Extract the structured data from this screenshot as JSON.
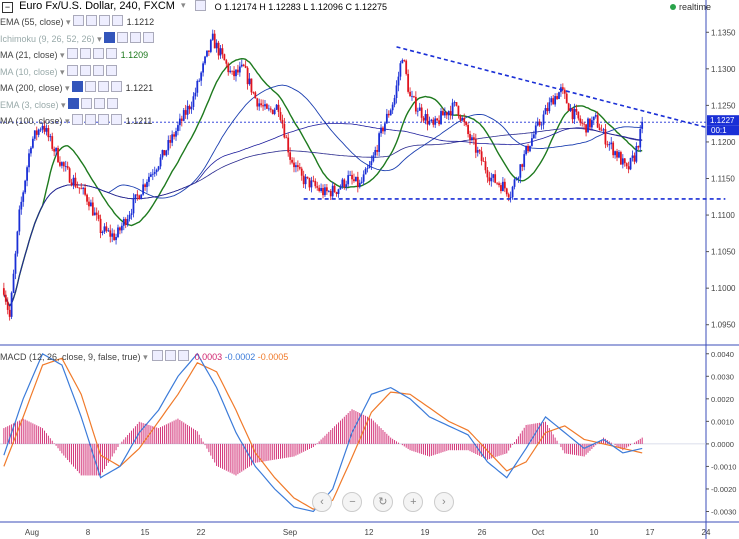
{
  "header": {
    "symbol": "Euro Fx/U.S. Dollar, 240, FXCM",
    "ohlc": "O 1.12174 H 1.12283 L 1.12096 C 1.12275",
    "realtime_label": "realtime"
  },
  "indicators": [
    {
      "name": "EMA (55, close)",
      "value": "1.1212",
      "color": "#1c3fb0"
    },
    {
      "name": "Ichimoku (9, 26, 52, 26)",
      "value": "",
      "color": "#7f9bd4"
    },
    {
      "name": "MA (21, close)",
      "value": "1.1209",
      "color": "#1e7a1e"
    },
    {
      "name": "MA (10, close)",
      "value": "",
      "color": "#999999"
    },
    {
      "name": "MA (200, close)",
      "value": "1.1221",
      "color": "#2a2a8e"
    },
    {
      "name": "EMA (3, close)",
      "value": "",
      "color": "#999999"
    },
    {
      "name": "MA (100, close)",
      "value": "1.1211",
      "color": "#1c1c9c"
    }
  ],
  "macd_legend": {
    "name": "MACD (12, 26, close, 9, false, true)",
    "hist": "0.0003",
    "macd": "-0.0002",
    "signal": "-0.0005"
  },
  "price_axis": {
    "ticks": [
      "1.1350",
      "1.1300",
      "1.1250",
      "1.1200",
      "1.1150",
      "1.1100",
      "1.1050",
      "1.1000",
      "1.0950"
    ],
    "current_price": "1.1227",
    "countdown": "00:1"
  },
  "macd_axis": {
    "ticks": [
      "0.0040",
      "0.0030",
      "0.0020",
      "0.0010",
      "0.0000",
      "-0.0010",
      "-0.0020",
      "-0.0030"
    ]
  },
  "time_axis": {
    "ticks": [
      "Aug",
      "8",
      "15",
      "22",
      "Sep",
      "12",
      "19",
      "26",
      "Oct",
      "10",
      "17",
      "24"
    ]
  },
  "colors": {
    "up": "#1a2fd6",
    "down": "#e0141e",
    "axis": "#3b4eb8",
    "macd_line": "#3b7bd9",
    "signal_line": "#f07a2a",
    "hist": "#d0246e"
  },
  "chart_data": [
    {
      "type": "candlestick",
      "title": "Euro Fx/U.S. Dollar, 240, FXCM",
      "ylim": [
        1.0925,
        1.1375
      ],
      "x_range": [
        "Aug",
        "24"
      ],
      "anchor_points": [
        [
          0,
          1.1
        ],
        [
          3,
          1.096
        ],
        [
          8,
          1.11
        ],
        [
          14,
          1.12
        ],
        [
          20,
          1.1225
        ],
        [
          24,
          1.12
        ],
        [
          28,
          1.118
        ],
        [
          32,
          1.116
        ],
        [
          38,
          1.114
        ],
        [
          44,
          1.112
        ],
        [
          50,
          1.108
        ],
        [
          58,
          1.107
        ],
        [
          66,
          1.111
        ],
        [
          74,
          1.115
        ],
        [
          82,
          1.118
        ],
        [
          90,
          1.122
        ],
        [
          98,
          1.126
        ],
        [
          104,
          1.131
        ],
        [
          108,
          1.134
        ],
        [
          112,
          1.132
        ],
        [
          118,
          1.129
        ],
        [
          124,
          1.13
        ],
        [
          130,
          1.126
        ],
        [
          136,
          1.124
        ],
        [
          142,
          1.125
        ],
        [
          148,
          1.118
        ],
        [
          154,
          1.115
        ],
        [
          160,
          1.114
        ],
        [
          166,
          1.113
        ],
        [
          172,
          1.1135
        ],
        [
          178,
          1.115
        ],
        [
          184,
          1.114
        ],
        [
          190,
          1.117
        ],
        [
          196,
          1.122
        ],
        [
          202,
          1.126
        ],
        [
          206,
          1.132
        ],
        [
          210,
          1.126
        ],
        [
          216,
          1.124
        ],
        [
          222,
          1.122
        ],
        [
          228,
          1.124
        ],
        [
          234,
          1.125
        ],
        [
          240,
          1.121
        ],
        [
          246,
          1.118
        ],
        [
          252,
          1.115
        ],
        [
          258,
          1.114
        ],
        [
          262,
          1.113
        ],
        [
          266,
          1.116
        ],
        [
          272,
          1.12
        ],
        [
          278,
          1.123
        ],
        [
          284,
          1.126
        ],
        [
          288,
          1.127
        ],
        [
          294,
          1.124
        ],
        [
          300,
          1.122
        ],
        [
          306,
          1.123
        ],
        [
          312,
          1.12
        ],
        [
          318,
          1.118
        ],
        [
          322,
          1.116
        ],
        [
          326,
          1.118
        ],
        [
          330,
          1.122
        ]
      ],
      "annotations": [
        {
          "kind": "descending trendline",
          "from": [
            205,
            1.133
          ],
          "to": [
            365,
            1.122
          ]
        },
        {
          "kind": "support line",
          "from": [
            157,
            1.1122
          ],
          "to": [
            375,
            1.1122
          ]
        }
      ]
    },
    {
      "type": "line",
      "title": "MACD (12, 26, close, 9, false, true)",
      "ylim": [
        -0.0032,
        0.0043
      ],
      "series": [
        {
          "name": "MACD",
          "anchor_points": [
            [
              0,
              -0.0005
            ],
            [
              10,
              0.002
            ],
            [
              20,
              0.004
            ],
            [
              30,
              0.0035
            ],
            [
              40,
              0.0012
            ],
            [
              50,
              -0.0015
            ],
            [
              60,
              -0.001
            ],
            [
              70,
              0.0005
            ],
            [
              80,
              0.0015
            ],
            [
              90,
              0.003
            ],
            [
              100,
              0.004
            ],
            [
              110,
              0.0025
            ],
            [
              120,
              0.0005
            ],
            [
              130,
              -0.001
            ],
            [
              140,
              -0.002
            ],
            [
              150,
              -0.0028
            ],
            [
              160,
              -0.003
            ],
            [
              170,
              -0.002
            ],
            [
              180,
              0.0005
            ],
            [
              190,
              0.0022
            ],
            [
              200,
              0.0025
            ],
            [
              210,
              0.002
            ],
            [
              220,
              0.0012
            ],
            [
              230,
              0.0008
            ],
            [
              240,
              0.0004
            ],
            [
              250,
              -0.0008
            ],
            [
              260,
              -0.0015
            ],
            [
              270,
              -0.0002
            ],
            [
              280,
              0.0012
            ],
            [
              290,
              0.0005
            ],
            [
              300,
              -0.0002
            ],
            [
              310,
              0.0002
            ],
            [
              320,
              -0.0004
            ],
            [
              330,
              -0.0002
            ]
          ]
        },
        {
          "name": "Signal",
          "anchor_points": [
            [
              0,
              -0.001
            ],
            [
              10,
              0.0012
            ],
            [
              20,
              0.0035
            ],
            [
              30,
              0.0038
            ],
            [
              40,
              0.0022
            ],
            [
              50,
              -0.0005
            ],
            [
              60,
              -0.001
            ],
            [
              70,
              -0.0002
            ],
            [
              80,
              0.001
            ],
            [
              90,
              0.0022
            ],
            [
              100,
              0.0036
            ],
            [
              110,
              0.0032
            ],
            [
              120,
              0.0015
            ],
            [
              130,
              -0.0004
            ],
            [
              140,
              -0.0015
            ],
            [
              150,
              -0.0024
            ],
            [
              160,
              -0.0029
            ],
            [
              170,
              -0.0025
            ],
            [
              180,
              -0.0006
            ],
            [
              190,
              0.0014
            ],
            [
              200,
              0.0023
            ],
            [
              210,
              0.0022
            ],
            [
              220,
              0.0016
            ],
            [
              230,
              0.001
            ],
            [
              240,
              0.0006
            ],
            [
              250,
              -0.0003
            ],
            [
              260,
              -0.0012
            ],
            [
              270,
              -0.0008
            ],
            [
              280,
              0.0005
            ],
            [
              290,
              0.0008
            ],
            [
              300,
              0.0002
            ],
            [
              310,
              0.0
            ],
            [
              320,
              -0.0002
            ],
            [
              330,
              -0.0004
            ]
          ]
        }
      ]
    }
  ]
}
